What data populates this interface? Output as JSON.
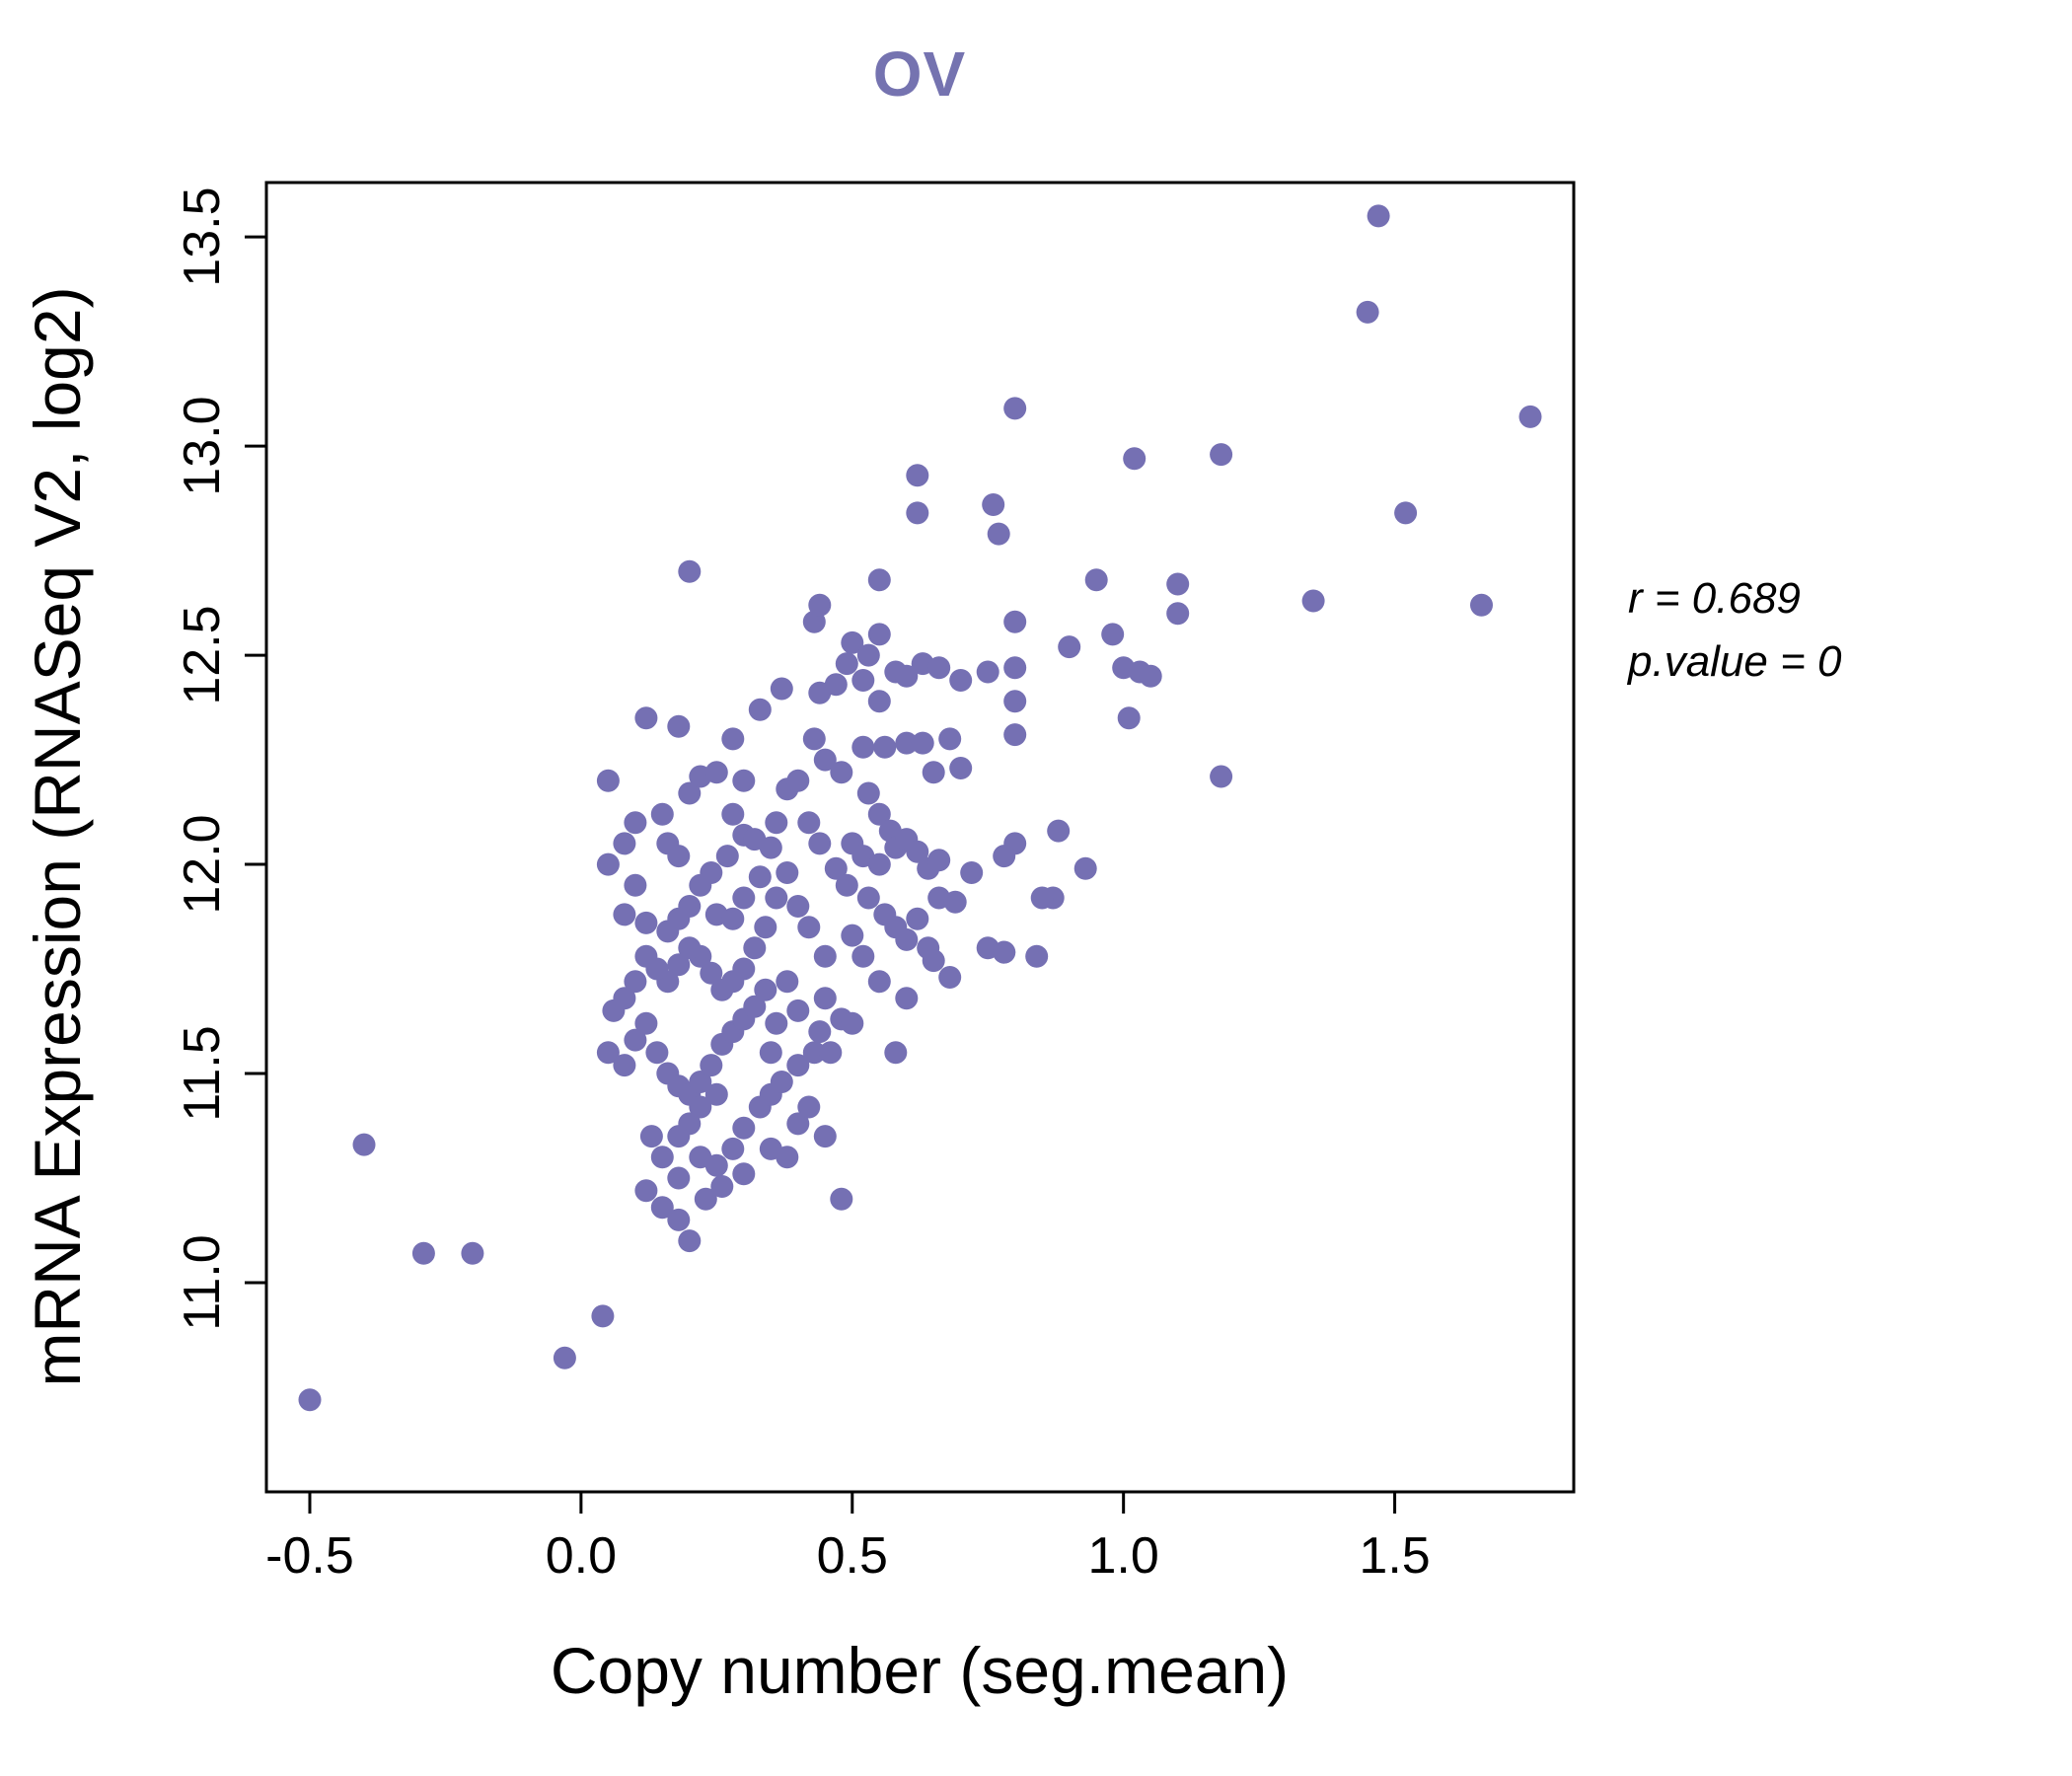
{
  "chart_data": {
    "type": "scatter",
    "title": "OV",
    "xlabel": "Copy number (seg.mean)",
    "ylabel": "mRNA Expression (RNASeq V2, log2)",
    "x_ticks": [
      "-0.5",
      "0.0",
      "0.5",
      "1.0",
      "1.5"
    ],
    "x_tick_values": [
      -0.5,
      0.0,
      0.5,
      1.0,
      1.5
    ],
    "y_ticks": [
      "11.0",
      "11.5",
      "12.0",
      "12.5",
      "13.0",
      "13.5"
    ],
    "y_tick_values": [
      11.0,
      11.5,
      12.0,
      12.5,
      13.0,
      13.5
    ],
    "xlim": [
      -0.58,
      1.83
    ],
    "ylim": [
      10.5,
      13.63
    ],
    "grid": false,
    "legend": "none",
    "annotation": {
      "r_label": "r = 0.689",
      "p_label": "p.value = 0"
    },
    "point_color": "#7570b3",
    "title_color": "#7573b0",
    "points": [
      [
        -0.5,
        10.72
      ],
      [
        -0.4,
        11.33
      ],
      [
        -0.29,
        11.07
      ],
      [
        -0.2,
        11.07
      ],
      [
        -0.03,
        10.82
      ],
      [
        0.04,
        10.92
      ],
      [
        1.47,
        13.55
      ],
      [
        1.45,
        13.32
      ],
      [
        1.75,
        13.07
      ],
      [
        1.52,
        12.84
      ],
      [
        1.66,
        12.62
      ],
      [
        1.35,
        12.63
      ],
      [
        1.18,
        12.98
      ],
      [
        1.02,
        12.97
      ],
      [
        0.8,
        13.09
      ],
      [
        1.18,
        12.21
      ],
      [
        0.95,
        12.68
      ],
      [
        1.1,
        12.67
      ],
      [
        1.1,
        12.6
      ],
      [
        0.98,
        12.55
      ],
      [
        1.0,
        12.47
      ],
      [
        1.03,
        12.46
      ],
      [
        1.05,
        12.45
      ],
      [
        0.9,
        12.52
      ],
      [
        1.01,
        12.35
      ],
      [
        0.93,
        11.99
      ],
      [
        0.87,
        11.92
      ],
      [
        0.85,
        11.92
      ],
      [
        0.8,
        12.05
      ],
      [
        0.88,
        12.08
      ],
      [
        0.78,
        11.79
      ],
      [
        0.84,
        11.78
      ],
      [
        0.78,
        12.02
      ],
      [
        0.62,
        12.93
      ],
      [
        0.62,
        12.84
      ],
      [
        0.76,
        12.86
      ],
      [
        0.77,
        12.79
      ],
      [
        0.8,
        12.58
      ],
      [
        0.8,
        12.47
      ],
      [
        0.8,
        12.39
      ],
      [
        0.8,
        12.31
      ],
      [
        0.75,
        12.46
      ],
      [
        0.7,
        12.44
      ],
      [
        0.43,
        12.58
      ],
      [
        0.5,
        12.53
      ],
      [
        0.49,
        12.48
      ],
      [
        0.53,
        12.5
      ],
      [
        0.55,
        12.55
      ],
      [
        0.58,
        12.46
      ],
      [
        0.6,
        12.45
      ],
      [
        0.63,
        12.48
      ],
      [
        0.66,
        12.47
      ],
      [
        0.55,
        12.39
      ],
      [
        0.52,
        12.44
      ],
      [
        0.44,
        12.41
      ],
      [
        0.37,
        12.42
      ],
      [
        0.33,
        12.37
      ],
      [
        0.2,
        12.7
      ],
      [
        0.55,
        12.68
      ],
      [
        0.44,
        12.62
      ],
      [
        0.12,
        12.35
      ],
      [
        0.18,
        12.33
      ],
      [
        0.28,
        12.3
      ],
      [
        0.43,
        12.3
      ],
      [
        0.45,
        12.25
      ],
      [
        0.48,
        12.22
      ],
      [
        0.52,
        12.28
      ],
      [
        0.56,
        12.28
      ],
      [
        0.6,
        12.29
      ],
      [
        0.63,
        12.29
      ],
      [
        0.65,
        12.22
      ],
      [
        0.53,
        12.17
      ],
      [
        0.55,
        12.12
      ],
      [
        0.57,
        12.08
      ],
      [
        0.5,
        12.05
      ],
      [
        0.52,
        12.02
      ],
      [
        0.55,
        12.0
      ],
      [
        0.58,
        12.04
      ],
      [
        0.6,
        12.06
      ],
      [
        0.62,
        12.03
      ],
      [
        0.64,
        11.99
      ],
      [
        0.66,
        12.01
      ],
      [
        0.68,
        12.3
      ],
      [
        0.7,
        12.23
      ],
      [
        0.72,
        11.98
      ],
      [
        0.47,
        11.99
      ],
      [
        0.49,
        11.95
      ],
      [
        0.53,
        11.92
      ],
      [
        0.56,
        11.88
      ],
      [
        0.58,
        11.85
      ],
      [
        0.6,
        11.82
      ],
      [
        0.62,
        11.87
      ],
      [
        0.64,
        11.8
      ],
      [
        0.66,
        11.92
      ],
      [
        0.69,
        11.91
      ],
      [
        0.5,
        11.83
      ],
      [
        0.52,
        11.78
      ],
      [
        0.55,
        11.72
      ],
      [
        0.58,
        11.55
      ],
      [
        0.45,
        11.68
      ],
      [
        0.48,
        11.63
      ],
      [
        0.43,
        11.55
      ],
      [
        0.4,
        11.52
      ],
      [
        0.47,
        12.43
      ],
      [
        0.3,
        12.2
      ],
      [
        0.05,
        12.2
      ],
      [
        0.08,
        12.05
      ],
      [
        0.05,
        12.0
      ],
      [
        0.1,
        11.95
      ],
      [
        0.08,
        11.88
      ],
      [
        0.12,
        11.86
      ],
      [
        0.15,
        12.12
      ],
      [
        0.16,
        12.05
      ],
      [
        0.18,
        12.02
      ],
      [
        0.2,
        12.17
      ],
      [
        0.22,
        12.21
      ],
      [
        0.25,
        12.22
      ],
      [
        0.28,
        12.12
      ],
      [
        0.3,
        12.07
      ],
      [
        0.32,
        12.06
      ],
      [
        0.27,
        12.02
      ],
      [
        0.24,
        11.98
      ],
      [
        0.22,
        11.95
      ],
      [
        0.2,
        11.9
      ],
      [
        0.18,
        11.87
      ],
      [
        0.16,
        11.84
      ],
      [
        0.25,
        11.88
      ],
      [
        0.28,
        11.87
      ],
      [
        0.3,
        11.92
      ],
      [
        0.33,
        11.97
      ],
      [
        0.35,
        12.04
      ],
      [
        0.36,
        12.1
      ],
      [
        0.38,
        12.18
      ],
      [
        0.4,
        12.2
      ],
      [
        0.42,
        12.1
      ],
      [
        0.44,
        12.05
      ],
      [
        0.38,
        11.98
      ],
      [
        0.36,
        11.92
      ],
      [
        0.34,
        11.85
      ],
      [
        0.32,
        11.8
      ],
      [
        0.3,
        11.75
      ],
      [
        0.28,
        11.72
      ],
      [
        0.26,
        11.7
      ],
      [
        0.24,
        11.74
      ],
      [
        0.22,
        11.78
      ],
      [
        0.2,
        11.8
      ],
      [
        0.18,
        11.76
      ],
      [
        0.16,
        11.72
      ],
      [
        0.14,
        11.75
      ],
      [
        0.12,
        11.78
      ],
      [
        0.1,
        11.72
      ],
      [
        0.08,
        11.68
      ],
      [
        0.06,
        11.65
      ],
      [
        0.1,
        12.1
      ],
      [
        0.05,
        11.55
      ],
      [
        0.08,
        11.52
      ],
      [
        0.1,
        11.58
      ],
      [
        0.12,
        11.62
      ],
      [
        0.14,
        11.55
      ],
      [
        0.16,
        11.5
      ],
      [
        0.18,
        11.47
      ],
      [
        0.2,
        11.45
      ],
      [
        0.22,
        11.48
      ],
      [
        0.24,
        11.52
      ],
      [
        0.26,
        11.57
      ],
      [
        0.28,
        11.6
      ],
      [
        0.3,
        11.63
      ],
      [
        0.32,
        11.66
      ],
      [
        0.34,
        11.7
      ],
      [
        0.25,
        11.45
      ],
      [
        0.22,
        11.42
      ],
      [
        0.2,
        11.38
      ],
      [
        0.18,
        11.35
      ],
      [
        0.22,
        11.3
      ],
      [
        0.25,
        11.28
      ],
      [
        0.28,
        11.32
      ],
      [
        0.3,
        11.37
      ],
      [
        0.33,
        11.42
      ],
      [
        0.35,
        11.45
      ],
      [
        0.37,
        11.48
      ],
      [
        0.13,
        11.35
      ],
      [
        0.15,
        11.3
      ],
      [
        0.12,
        11.22
      ],
      [
        0.15,
        11.18
      ],
      [
        0.18,
        11.15
      ],
      [
        0.2,
        11.1
      ],
      [
        0.23,
        11.2
      ],
      [
        0.26,
        11.23
      ],
      [
        0.3,
        11.26
      ],
      [
        0.35,
        11.32
      ],
      [
        0.4,
        11.38
      ],
      [
        0.42,
        11.42
      ],
      [
        0.45,
        11.35
      ],
      [
        0.48,
        11.2
      ],
      [
        0.38,
        11.3
      ],
      [
        0.18,
        11.25
      ],
      [
        0.45,
        11.78
      ],
      [
        0.42,
        11.85
      ],
      [
        0.4,
        11.9
      ],
      [
        0.38,
        11.72
      ],
      [
        0.36,
        11.62
      ],
      [
        0.44,
        11.6
      ],
      [
        0.46,
        11.55
      ],
      [
        0.5,
        11.62
      ],
      [
        0.35,
        11.55
      ],
      [
        0.4,
        11.65
      ],
      [
        0.6,
        11.68
      ],
      [
        0.65,
        11.77
      ],
      [
        0.68,
        11.73
      ],
      [
        0.75,
        11.8
      ],
      [
        0.78,
        11.79
      ]
    ]
  }
}
